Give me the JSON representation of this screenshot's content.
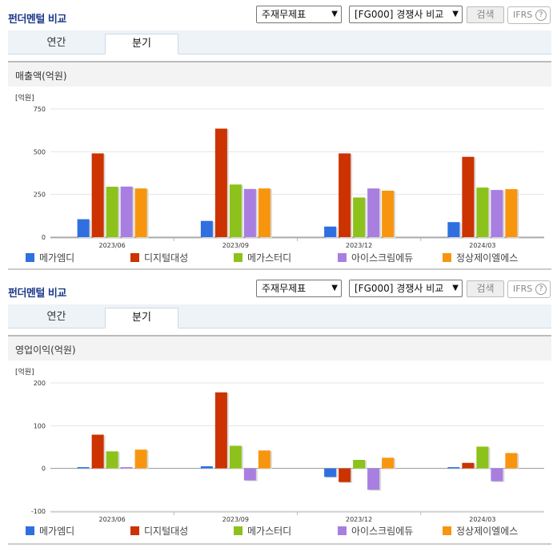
{
  "sections": [
    {
      "title": "펀더멘털 비교",
      "select_statement": "주재무제표",
      "select_compare": "[FG000] 경쟁사 비교",
      "search_label": "검색",
      "ifrs_label": "IFRS",
      "tabs": [
        "연간",
        "분기"
      ],
      "panel_title": "매출액(억원)"
    },
    {
      "title": "펀더멘털 비교",
      "select_statement": "주재무제표",
      "select_compare": "[FG000] 경쟁사 비교",
      "search_label": "검색",
      "ifrs_label": "IFRS",
      "tabs": [
        "연간",
        "분기"
      ],
      "panel_title": "영업이익(억원)"
    }
  ],
  "chart_data": [
    {
      "type": "bar",
      "unit_label": "[억원]",
      "categories": [
        "2023/06",
        "2023/09",
        "2023/12",
        "2024/03"
      ],
      "ylim": [
        0,
        750
      ],
      "yticks": [
        0,
        250,
        500,
        750
      ],
      "grid": true,
      "legend_position": "bottom",
      "series": [
        {
          "name": "메가엠디",
          "color": "#2f6fe0",
          "values": [
            105,
            95,
            62,
            88
          ]
        },
        {
          "name": "디지털대성",
          "color": "#cc3300",
          "values": [
            490,
            635,
            490,
            470
          ]
        },
        {
          "name": "메가스터디",
          "color": "#8cc21b",
          "values": [
            295,
            308,
            232,
            290
          ]
        },
        {
          "name": "아이스크림에듀",
          "color": "#a87fe0",
          "values": [
            296,
            282,
            285,
            276
          ]
        },
        {
          "name": "정상제이엘에스",
          "color": "#f7960e",
          "values": [
            285,
            285,
            272,
            281
          ]
        }
      ]
    },
    {
      "type": "bar",
      "unit_label": "[억원]",
      "categories": [
        "2023/06",
        "2023/09",
        "2023/12",
        "2024/03"
      ],
      "ylim": [
        -100,
        200
      ],
      "yticks": [
        -100,
        0,
        100,
        200
      ],
      "grid": true,
      "legend_position": "bottom",
      "series": [
        {
          "name": "메가엠디",
          "color": "#2f6fe0",
          "values": [
            3,
            5,
            -20,
            3
          ]
        },
        {
          "name": "디지털대성",
          "color": "#cc3300",
          "values": [
            79,
            178,
            -32,
            13
          ]
        },
        {
          "name": "메가스터디",
          "color": "#8cc21b",
          "values": [
            40,
            53,
            20,
            51
          ]
        },
        {
          "name": "아이스크림에듀",
          "color": "#a87fe0",
          "values": [
            3,
            -28,
            -50,
            -30
          ]
        },
        {
          "name": "정상제이엘에스",
          "color": "#f7960e",
          "values": [
            44,
            42,
            25,
            36
          ]
        }
      ]
    }
  ]
}
